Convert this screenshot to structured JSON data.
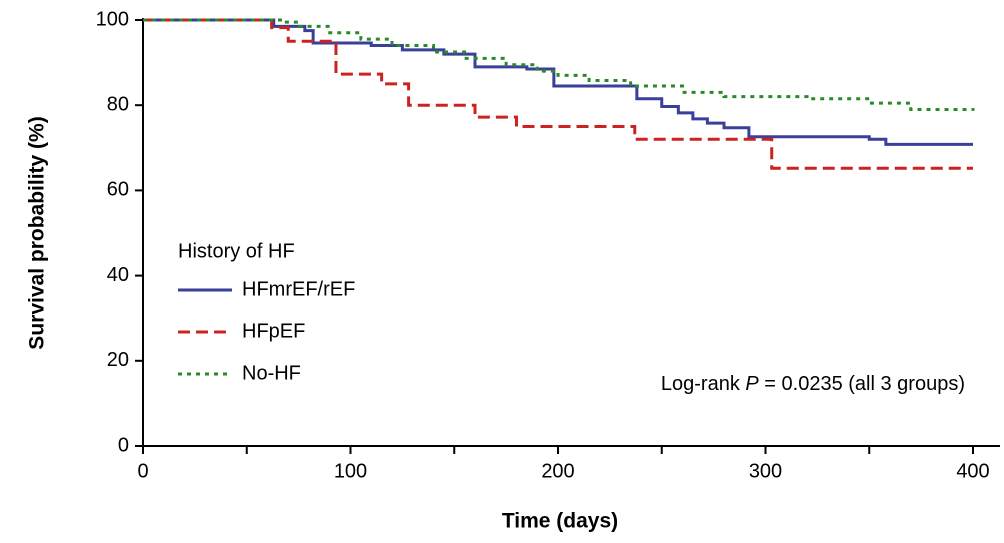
{
  "chart_data": {
    "type": "step",
    "xlabel": "Time (days)",
    "ylabel": "Survival probability (%)",
    "xlim": [
      0,
      413
    ],
    "ylim": [
      0,
      100
    ],
    "xticks": [
      0,
      100,
      200,
      300,
      400
    ],
    "xminor_ticks": [
      50,
      150,
      250,
      350
    ],
    "yticks": [
      0,
      20,
      40,
      60,
      80,
      100
    ],
    "legend_title": "History of HF",
    "legend_position": "lower left",
    "annotation": {
      "prefix": "Log-rank ",
      "italic": "P",
      "suffix": " = 0.0235 (all 3 groups)"
    },
    "series": [
      {
        "name": "HFmrEF/rEF",
        "color": "#3a3f9a",
        "dash": "solid",
        "x": [
          0,
          63,
          78,
          82,
          110,
          125,
          145,
          160,
          185,
          198,
          238,
          250,
          258,
          265,
          272,
          280,
          292,
          350,
          358,
          400
        ],
        "values": [
          100,
          98.5,
          97.5,
          94.6,
          94,
          93,
          92,
          89,
          88.5,
          84.5,
          81.5,
          79.7,
          78.2,
          76.8,
          75.8,
          74.7,
          72.6,
          72,
          70.8,
          70.8
        ]
      },
      {
        "name": "HFpEF",
        "color": "#cc2222",
        "dash": "dashed",
        "x": [
          0,
          62,
          70,
          93,
          115,
          128,
          160,
          180,
          237,
          303,
          400
        ],
        "values": [
          100,
          98.2,
          95,
          87.3,
          85,
          80,
          77.2,
          75,
          72,
          65.2,
          65.2
        ]
      },
      {
        "name": "No-HF",
        "color": "#2a8a2a",
        "dash": "dotted",
        "x": [
          0,
          68,
          75,
          90,
          105,
          120,
          140,
          155,
          175,
          190,
          200,
          215,
          235,
          260,
          280,
          320,
          350,
          370,
          400
        ],
        "values": [
          100,
          99.5,
          98.5,
          97,
          95.5,
          94,
          92.5,
          91,
          89.5,
          88,
          87,
          85.8,
          84.5,
          83,
          82,
          81.5,
          80.5,
          79,
          78.7
        ]
      }
    ]
  }
}
